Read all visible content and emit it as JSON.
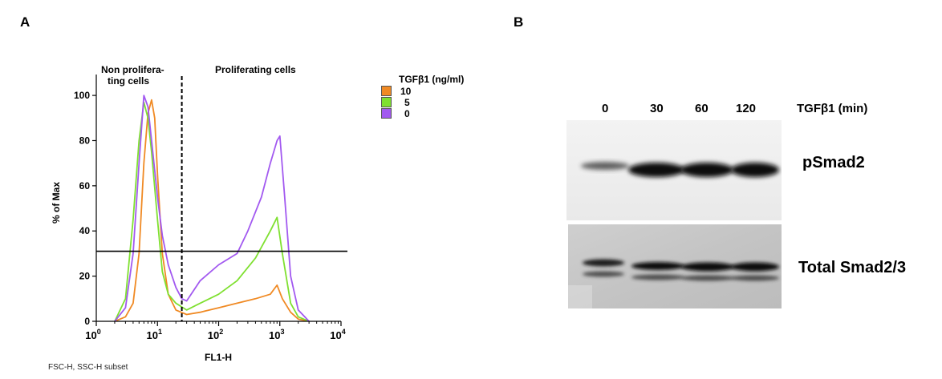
{
  "panel_a": {
    "label": "A",
    "region_left": "Non prolifera-",
    "region_left_2": "ting cells",
    "region_right": "Proliferating cells",
    "footnote": "FSC-H, SSC-H subset",
    "legend": {
      "title": "TGFβ1 (ng/ml)",
      "items": [
        {
          "label": "10",
          "color": "#F08A24"
        },
        {
          "label": "5",
          "color": "#7FE030"
        },
        {
          "label": "0",
          "color": "#A259F0"
        }
      ]
    }
  },
  "chart_data": {
    "type": "line",
    "xlabel": "FL1-H",
    "ylabel": "% of Max",
    "x_scale": "log",
    "xlim": [
      1,
      10000
    ],
    "ylim": [
      0,
      105
    ],
    "x_ticks": [
      {
        "base": "10",
        "exp": "0"
      },
      {
        "base": "10",
        "exp": "1"
      },
      {
        "base": "10",
        "exp": "2"
      },
      {
        "base": "10",
        "exp": "3"
      },
      {
        "base": "10",
        "exp": "4"
      }
    ],
    "y_ticks": [
      "0",
      "20",
      "40",
      "60",
      "80",
      "100"
    ],
    "gate_x": 25,
    "threshold_y": 31,
    "series": [
      {
        "name": "10",
        "color": "#F08A24",
        "x": [
          2,
          3,
          4,
          5,
          6,
          7,
          8,
          9,
          10,
          12,
          15,
          20,
          30,
          50,
          100,
          200,
          400,
          700,
          900,
          1100,
          1500,
          2000,
          3000
        ],
        "y": [
          0,
          2,
          8,
          30,
          70,
          92,
          98,
          90,
          65,
          30,
          12,
          5,
          3,
          4,
          6,
          8,
          10,
          12,
          16,
          10,
          4,
          1,
          0
        ]
      },
      {
        "name": "5",
        "color": "#7FE030",
        "x": [
          2,
          3,
          4,
          5,
          6,
          7,
          8,
          10,
          12,
          15,
          20,
          30,
          50,
          100,
          200,
          400,
          700,
          900,
          1100,
          1500,
          2000,
          3000
        ],
        "y": [
          0,
          10,
          45,
          80,
          97,
          90,
          75,
          45,
          22,
          12,
          8,
          5,
          8,
          12,
          18,
          28,
          40,
          46,
          30,
          8,
          2,
          0
        ]
      },
      {
        "name": "0",
        "color": "#A259F0",
        "x": [
          2,
          3,
          4,
          5,
          6,
          7,
          8,
          10,
          12,
          15,
          20,
          25,
          30,
          50,
          100,
          200,
          300,
          500,
          700,
          900,
          1000,
          1200,
          1500,
          2000,
          3000
        ],
        "y": [
          0,
          6,
          30,
          70,
          100,
          95,
          80,
          55,
          38,
          25,
          15,
          10,
          9,
          18,
          25,
          30,
          40,
          55,
          70,
          80,
          82,
          55,
          20,
          5,
          0
        ]
      }
    ]
  },
  "panel_b": {
    "label": "B",
    "lanes": [
      "0",
      "30",
      "60",
      "120"
    ],
    "condition": "TGFβ1 (min)",
    "blots": [
      {
        "name": "pSmad2"
      },
      {
        "name": "Total Smad2/3"
      }
    ]
  }
}
